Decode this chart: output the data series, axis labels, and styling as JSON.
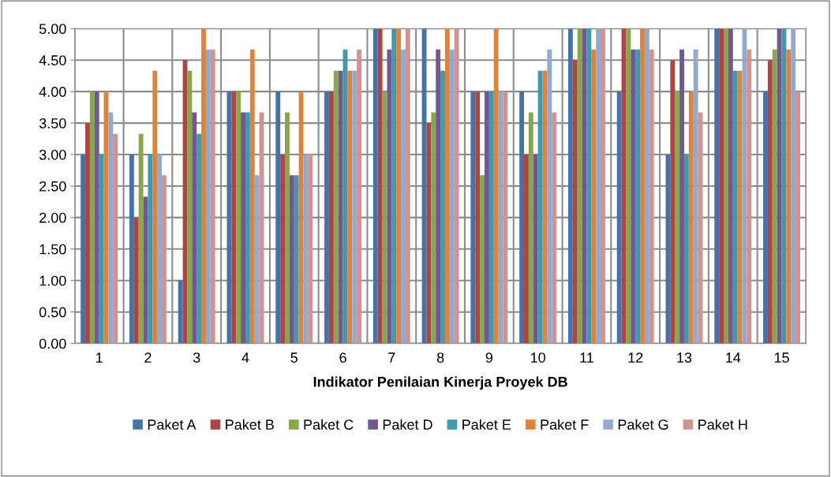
{
  "chart_data": {
    "type": "bar",
    "xlabel": "Indikator Penilaian Kinerja Proyek DB",
    "categories": [
      "1",
      "2",
      "3",
      "4",
      "5",
      "6",
      "7",
      "8",
      "9",
      "10",
      "11",
      "12",
      "13",
      "14",
      "15"
    ],
    "ylim": [
      0,
      5
    ],
    "yticks": [
      {
        "value": 0,
        "label": "0.00"
      },
      {
        "value": 0.5,
        "label": "0.50"
      },
      {
        "value": 1,
        "label": "1.00"
      },
      {
        "value": 1.5,
        "label": "1.50"
      },
      {
        "value": 2,
        "label": "2.00"
      },
      {
        "value": 2.5,
        "label": "2.50"
      },
      {
        "value": 3,
        "label": "3.00"
      },
      {
        "value": 3.5,
        "label": "3.50"
      },
      {
        "value": 4,
        "label": "4.00"
      },
      {
        "value": 4.5,
        "label": "4.50"
      },
      {
        "value": 5,
        "label": "5.00"
      }
    ],
    "grid": true,
    "legend": "bottom",
    "series": [
      {
        "name": "Paket A",
        "color": "#4572a7",
        "values": [
          3,
          3,
          1,
          4,
          4,
          4,
          5,
          5,
          4,
          4,
          5,
          4,
          3,
          5,
          4
        ]
      },
      {
        "name": "Paket B",
        "color": "#aa4643",
        "values": [
          3.5,
          2,
          4.5,
          4,
          3,
          4,
          5,
          3.5,
          4,
          3,
          4.5,
          5,
          4.5,
          5,
          4.5
        ]
      },
      {
        "name": "Paket C",
        "color": "#89a54e",
        "values": [
          4,
          3.33,
          4.33,
          4,
          3.67,
          4.33,
          4,
          3.67,
          2.67,
          3.67,
          5,
          5,
          4,
          5,
          4.67
        ]
      },
      {
        "name": "Paket D",
        "color": "#71588f",
        "values": [
          4,
          2.33,
          3.67,
          3.67,
          2.67,
          4.33,
          4.67,
          4.67,
          4,
          3,
          5,
          4.67,
          4.67,
          5,
          5
        ]
      },
      {
        "name": "Paket E",
        "color": "#4198af",
        "values": [
          3,
          3,
          3.33,
          3.67,
          2.67,
          4.67,
          5,
          4.33,
          4,
          4.33,
          5,
          4.67,
          3,
          4.33,
          5
        ]
      },
      {
        "name": "Paket F",
        "color": "#db843d",
        "values": [
          4,
          4.33,
          5,
          4.67,
          4,
          4.33,
          5,
          5,
          5,
          4.33,
          4.67,
          5,
          4,
          4.33,
          4.67
        ]
      },
      {
        "name": "Paket G",
        "color": "#93a9cf",
        "values": [
          3.67,
          3,
          4.67,
          2.67,
          3,
          4.33,
          4.67,
          4.67,
          4,
          4.67,
          5,
          5,
          4.67,
          5,
          5
        ]
      },
      {
        "name": "Paket H",
        "color": "#d19392",
        "values": [
          3.33,
          2.67,
          4.67,
          3.67,
          3,
          4.67,
          5,
          5,
          4,
          3.67,
          5,
          4.67,
          3.67,
          4.67,
          4
        ]
      }
    ]
  }
}
